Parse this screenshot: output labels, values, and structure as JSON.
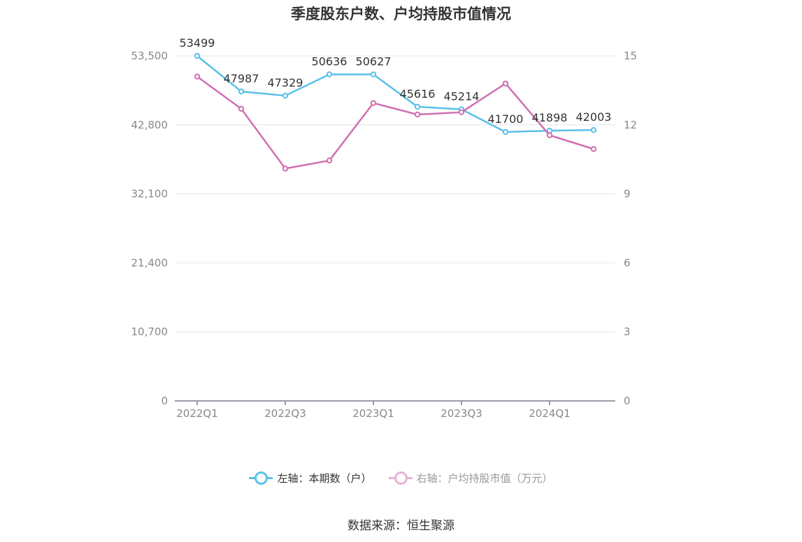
{
  "chart_data": {
    "type": "line",
    "title": "季度股东户数、户均持股市值情况",
    "categories": [
      "2022Q1",
      "2022Q2",
      "2022Q3",
      "2022Q4",
      "2023Q1",
      "2023Q2",
      "2023Q3",
      "2023Q4",
      "2024Q1",
      "2024Q2"
    ],
    "x_tick_labels": [
      "2022Q1",
      "2022Q3",
      "2023Q1",
      "2023Q3",
      "2024Q1"
    ],
    "y_left": {
      "ylim": [
        0,
        53500
      ],
      "ticks": [
        "0",
        "10,700",
        "21,400",
        "32,100",
        "42,800",
        "53,500"
      ]
    },
    "y_right": {
      "ylim": [
        0,
        15
      ],
      "ticks": [
        "0",
        "3",
        "6",
        "9",
        "12",
        "15"
      ]
    },
    "series": [
      {
        "name": "左轴：本期数（户）",
        "axis": "left",
        "color": "#5bc0eb",
        "values": [
          53499,
          47987,
          47329,
          50636,
          50627,
          45616,
          45214,
          41700,
          41898,
          42003
        ],
        "labels": [
          "53499",
          "47987",
          "47329",
          "50636",
          "50627",
          "45616",
          "45214",
          "41700",
          "41898",
          "42003"
        ]
      },
      {
        "name": "右轴：户均持股市值（万元）",
        "axis": "right",
        "color": "#d16fb1",
        "values": [
          14.1,
          12.7,
          10.1,
          10.45,
          12.95,
          12.45,
          12.55,
          13.8,
          11.55,
          10.95
        ]
      }
    ],
    "grid": true,
    "legend_position": "bottom"
  },
  "source": "数据来源：恒生聚源"
}
